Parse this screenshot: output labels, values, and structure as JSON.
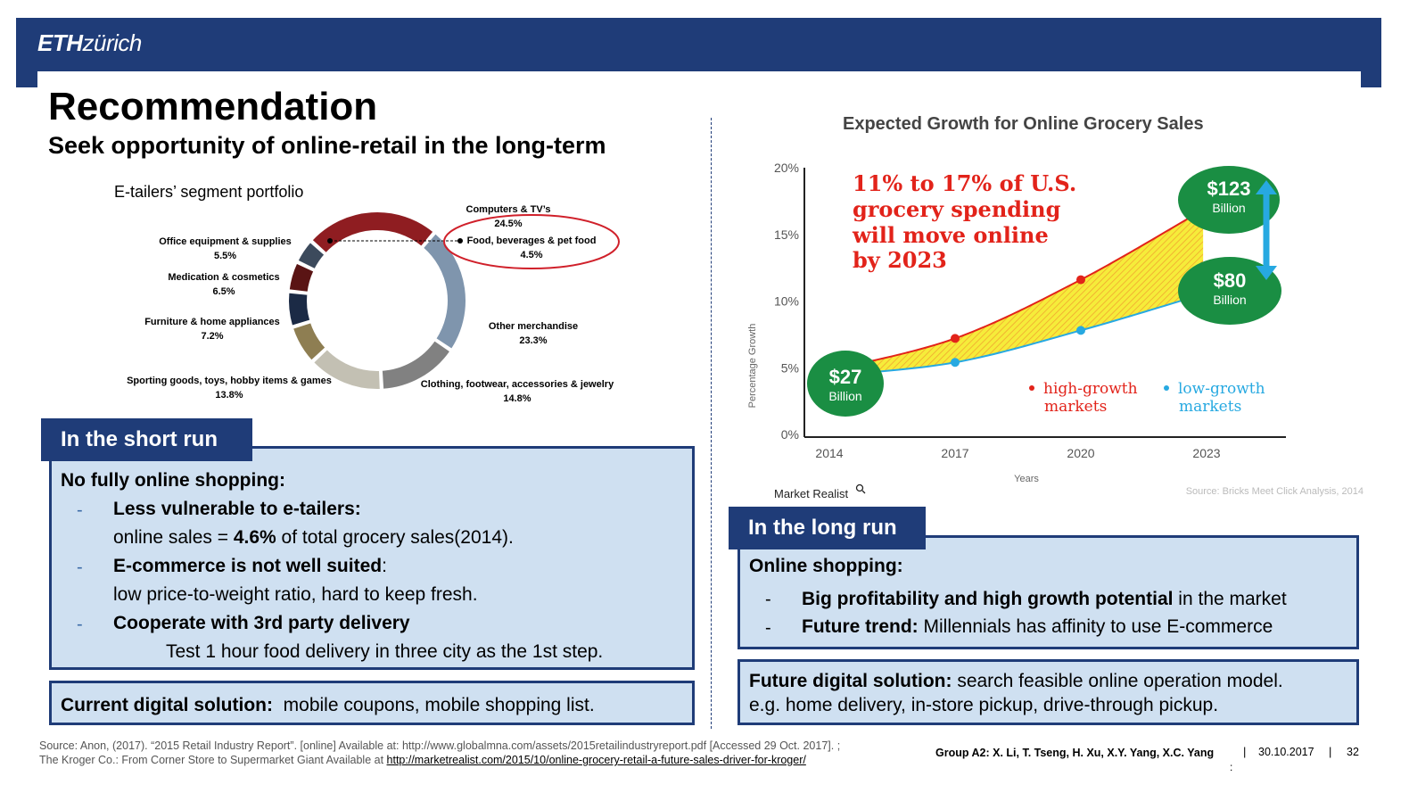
{
  "header": {
    "logo_bold": "ETH",
    "logo_italic": "zürich"
  },
  "title": "Recommendation",
  "subtitle": "Seek opportunity of online-retail in the long-term",
  "donut": {
    "title": "E-tailers’ segment portfolio",
    "segments": [
      {
        "name": "Computers & TV’s",
        "value": "24.5%",
        "pct": 24.5,
        "color": "#8f1d21"
      },
      {
        "name": "Other merchandise",
        "value": "23.3%",
        "pct": 23.3,
        "color": "#7f95ad"
      },
      {
        "name": "Clothing, footwear, accessories & jewelry",
        "value": "14.8%",
        "pct": 14.8,
        "color": "#818181"
      },
      {
        "name": "Sporting goods, toys, hobby items & games",
        "value": "13.8%",
        "pct": 13.8,
        "color": "#c3c0b3"
      },
      {
        "name": "Furniture & home appliances",
        "value": "7.2%",
        "pct": 7.2,
        "color": "#8e7e52"
      },
      {
        "name": "Medication & cosmetics",
        "value": "6.5%",
        "pct": 6.5,
        "color": "#1b2a45"
      },
      {
        "name": "Office equipment & supplies",
        "value": "5.5%",
        "pct": 5.5,
        "color": "#5a1414"
      },
      {
        "name": "Food, beverages & pet food",
        "value": "4.5%",
        "pct": 4.5,
        "color": "#3c4a5c"
      }
    ]
  },
  "short_run": {
    "tab": "In the short run",
    "heading": "No fully online shopping:",
    "dash": "-",
    "item1_bold": "Less vulnerable to e-tailers:",
    "item1_detail_a": "online sales = ",
    "item1_detail_bold": "4.6%",
    "item1_detail_b": " of total grocery sales(2014).",
    "item2_bold": "E-commerce is not well suited",
    "item2_colon": ":",
    "item2_detail": "low price-to-weight ratio, hard to keep fresh.",
    "item3_bold": "Cooperate with 3rd party delivery",
    "item3_detail": "Test 1 hour food delivery in three city as the 1st step.",
    "digital_bold": "Current digital solution:",
    "digital_text": "  mobile coupons, mobile shopping list."
  },
  "chart_data": {
    "type": "line",
    "title": "Expected Growth for Online Grocery Sales",
    "xlabel": "Years",
    "ylabel": "Percentage Growth",
    "x": [
      2014,
      2017,
      2020,
      2023
    ],
    "yticks": [
      "0%",
      "5%",
      "10%",
      "15%",
      "20%"
    ],
    "ylim": [
      0,
      20
    ],
    "series": [
      {
        "name": "high-growth markets",
        "color": "#e2231a",
        "values": [
          4.8,
          7.2,
          11.6,
          17.0
        ]
      },
      {
        "name": "low-growth markets",
        "color": "#27a9e1",
        "values": [
          4.4,
          5.4,
          7.8,
          10.6
        ]
      }
    ],
    "annotation": [
      "11% to 17% of U.S.",
      "grocery spending",
      "will move online",
      "by 2023"
    ],
    "bubbles": [
      {
        "value": "$27",
        "unit": "Billion"
      },
      {
        "value": "$123",
        "unit": "Billion"
      },
      {
        "value": "$80",
        "unit": "Billion"
      }
    ],
    "legend": [
      {
        "line1": "high-growth",
        "line2": "markets",
        "color": "#e2231a"
      },
      {
        "line1": "low-growth",
        "line2": "markets",
        "color": "#27a9e1"
      }
    ],
    "brand": "Market Realist",
    "source": "Source: Bricks Meet Click Analysis, 2014"
  },
  "long_run": {
    "tab": "In the long run",
    "heading": "Online shopping:",
    "dash": "-",
    "item1_bold": "Big profitability and high growth potential",
    "item1_text": " in the market",
    "item2_bold": "Future trend:",
    "item2_text": " Millennials has affinity to use E-commerce",
    "future_bold": "Future digital solution:",
    "future_text": " search feasible online operation model.",
    "future_line2": "e.g. home delivery, in-store pickup, drive-through pickup."
  },
  "footer": {
    "source1": "Source: Anon, (2017). “2015 Retail Industry Report”. [online] Available at: http://www.globalmna.com/assets/2015retailindustryreport.pdf [Accessed 29 Oct. 2017]. ;",
    "source2_a": "The Kroger Co.: From Corner Store to Supermarket Giant Available at ",
    "source2_link": "http://marketrealist.com/2015/10/online-grocery-retail-a-future-sales-driver-for-kroger/",
    "group": "Group A2: X. Li, T. Tseng, H. Xu, X.Y. Yang, X.C. Yang",
    "colon": ":",
    "sep": "|",
    "date": "30.10.2017",
    "page": "32"
  }
}
